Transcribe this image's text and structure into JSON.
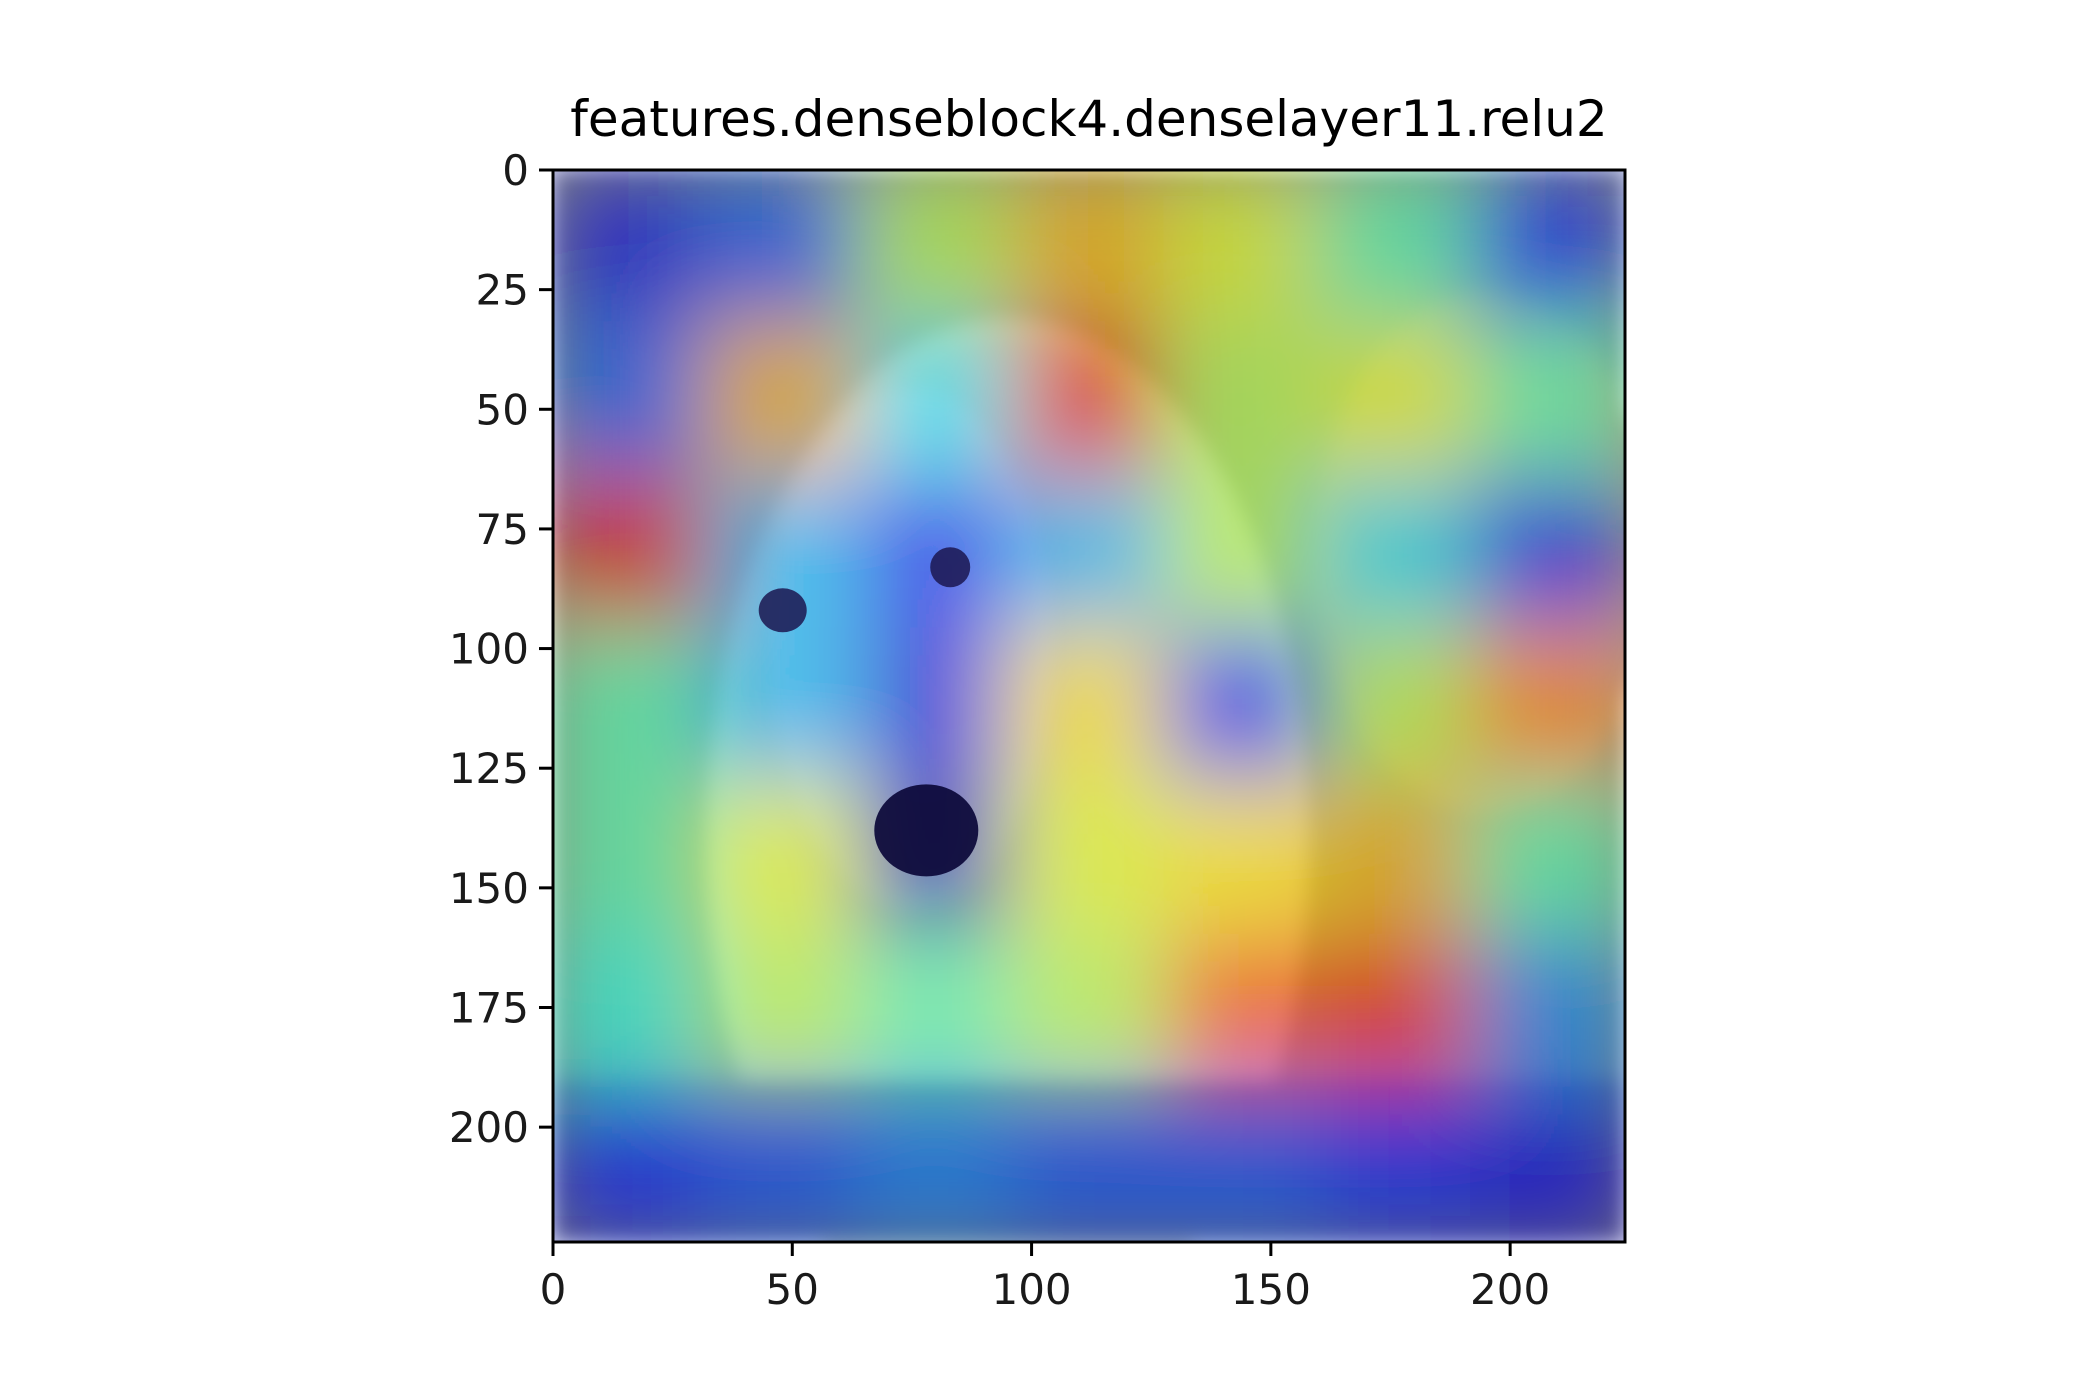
{
  "chart_data": {
    "type": "heatmap",
    "title": "features.denseblock4.denselayer11.relu2",
    "xlabel": "",
    "ylabel": "",
    "xlim": [
      0,
      224
    ],
    "ylim": [
      224,
      0
    ],
    "xticks": [
      0,
      50,
      100,
      150,
      200
    ],
    "yticks": [
      0,
      25,
      50,
      75,
      100,
      125,
      150,
      175,
      200
    ],
    "colormap": "jet",
    "grid": false,
    "legend": "none",
    "overlay_subject": "dog photo with activation heatmap overlay",
    "activation_grid": {
      "rows": 7,
      "cols": 7,
      "values": [
        [
          0.1,
          0.2,
          0.55,
          0.7,
          0.6,
          0.45,
          0.15
        ],
        [
          0.2,
          0.7,
          0.35,
          0.9,
          0.55,
          0.6,
          0.45
        ],
        [
          0.9,
          0.3,
          0.15,
          0.3,
          0.55,
          0.35,
          0.15
        ],
        [
          0.45,
          0.3,
          0.1,
          0.65,
          0.15,
          0.55,
          0.75
        ],
        [
          0.45,
          0.6,
          0.05,
          0.6,
          0.65,
          0.7,
          0.45
        ],
        [
          0.4,
          0.55,
          0.45,
          0.55,
          0.8,
          0.85,
          0.25
        ],
        [
          0.15,
          0.2,
          0.25,
          0.2,
          0.2,
          0.15,
          0.1
        ]
      ]
    }
  },
  "colors": {
    "background": "#ffffff",
    "axis": "#000000",
    "photo_fur": "#c9c4b0",
    "photo_face": "#d8d2c8"
  }
}
